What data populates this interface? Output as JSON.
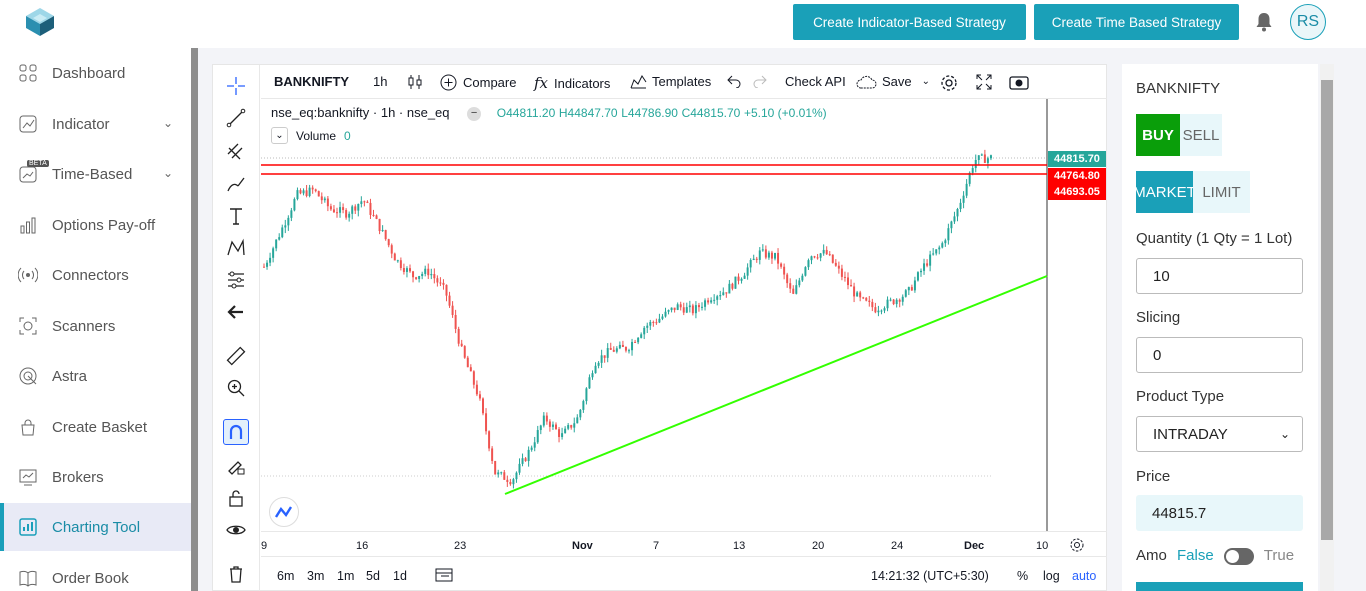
{
  "sidebar": {
    "items": [
      {
        "label": "Dashboard",
        "icon": "dashboard-icon"
      },
      {
        "label": "Indicator",
        "icon": "indicator-icon",
        "expandable": true
      },
      {
        "label": "Time-Based",
        "icon": "time-based-icon",
        "expandable": true,
        "badge": "BETA"
      },
      {
        "label": "Options Pay-off",
        "icon": "bar-chart-icon"
      },
      {
        "label": "Connectors",
        "icon": "broadcast-icon"
      },
      {
        "label": "Scanners",
        "icon": "scan-icon"
      },
      {
        "label": "Astra",
        "icon": "astra-icon"
      },
      {
        "label": "Create Basket",
        "icon": "basket-icon"
      },
      {
        "label": "Brokers",
        "icon": "brokers-icon"
      },
      {
        "label": "Charting Tool",
        "icon": "chart-icon",
        "active": true
      },
      {
        "label": "Order Book",
        "icon": "book-icon"
      }
    ]
  },
  "header": {
    "btn_indicator": "Create Indicator-Based Strategy",
    "btn_time": "Create Time Based Strategy",
    "avatar": "RS",
    "accent": "#1aa0b8"
  },
  "chart": {
    "toolbar": {
      "symbol": "BANKNIFTY",
      "interval": "1h",
      "compare": "Compare",
      "indicators": "Indicators",
      "templates": "Templates",
      "check_api": "Check API",
      "save": "Save"
    },
    "legend": {
      "symbol": "nse_eq:banknifty · 1h · nse_eq",
      "open": "O44811.20",
      "high": "H44847.70",
      "low": "L44786.90",
      "close": "C44815.70",
      "change": "+5.10 (+0.01%)"
    },
    "volume": {
      "label": "Volume",
      "value": "0"
    },
    "price_tags": [
      {
        "value": "44815.70",
        "color": "#26a69a"
      },
      {
        "value": "44764.80",
        "color": "#ff0000"
      },
      {
        "value": "44693.05",
        "color": "#ff0000"
      }
    ],
    "x_labels": [
      "9",
      "16",
      "23",
      "Nov",
      "7",
      "13",
      "20",
      "24",
      "Dec",
      "10"
    ],
    "bottom": {
      "ranges": [
        "6m",
        "3m",
        "1m",
        "5d",
        "1d"
      ],
      "time": "14:21:32 (UTC+5:30)",
      "pct": "%",
      "log": "log",
      "auto": "auto"
    }
  },
  "chart_data": {
    "type": "candlestick",
    "approx_close_path": [
      44350,
      44500,
      44660,
      44680,
      44600,
      44580,
      44640,
      44520,
      44380,
      44310,
      44330,
      44240,
      43980,
      43790,
      43460,
      43430,
      43550,
      43700,
      43620,
      43700,
      43940,
      43990,
      44000,
      44090,
      44130,
      44180,
      44160,
      44220,
      44250,
      44320,
      44410,
      44390,
      44220,
      44400,
      44410,
      44310,
      44210,
      44170,
      44200,
      44240,
      44360,
      44440,
      44600,
      44810,
      44820
    ],
    "lines": [
      {
        "kind": "horizontal",
        "value": 44764.8,
        "color": "#ff0000"
      },
      {
        "kind": "horizontal",
        "value": 44693.05,
        "color": "#ff0000"
      },
      {
        "kind": "trendline",
        "color": "#33ff00"
      }
    ]
  },
  "order": {
    "symbol": "BANKNIFTY",
    "buy": "BUY",
    "sell": "SELL",
    "market": "MARKET",
    "limit": "LIMIT",
    "qty_label": "Quantity (1 Qty = 1 Lot)",
    "qty": "10",
    "slicing_label": "Slicing",
    "slicing": "0",
    "product_label": "Product Type",
    "product": "INTRADAY",
    "price_label": "Price",
    "price": "44815.7",
    "amo_label": "Amo",
    "amo_false": "False",
    "amo_true": "True"
  }
}
